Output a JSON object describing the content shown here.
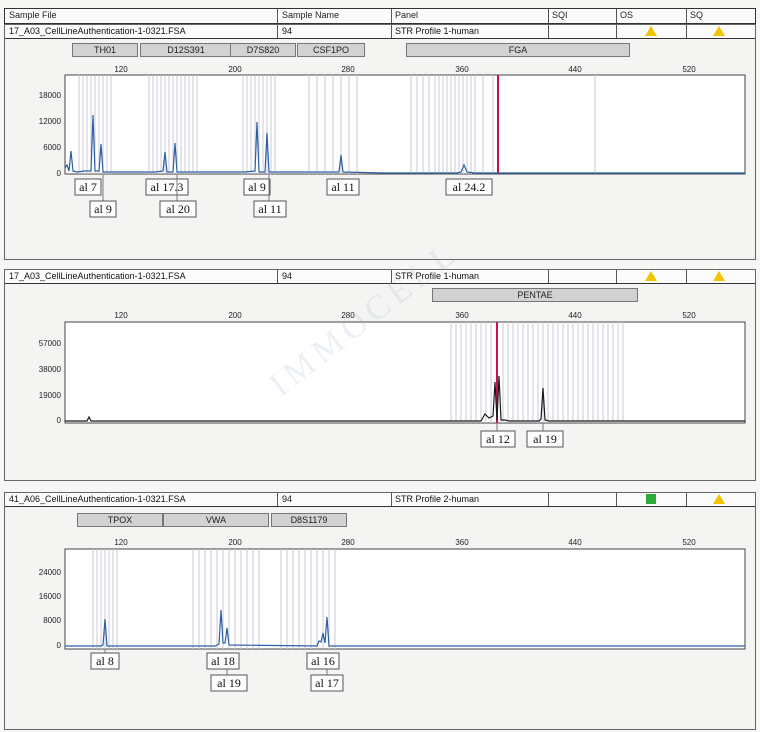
{
  "header": {
    "sample_file": "Sample File",
    "sample_name": "Sample Name",
    "panel": "Panel",
    "sqi": "SQI",
    "os": "OS",
    "sq": "SQ"
  },
  "x_axis_ticks": [
    "120",
    "200",
    "280",
    "360",
    "440",
    "520"
  ],
  "panels": [
    {
      "file": "17_A03_CellLineAuthentication-1-0321.FSA",
      "name": "94",
      "panel": "STR Profile 1-human",
      "markers": [
        "TH01",
        "D12S391",
        "D7S820",
        "CSF1PO",
        "FGA"
      ],
      "y_ticks": [
        "18000",
        "12000",
        "6000",
        "0"
      ],
      "alleles": [
        "al 7",
        "al 9",
        "al 17.3",
        "al 20",
        "al 9",
        "al 11",
        "al 11",
        "al 24.2"
      ]
    },
    {
      "file": "17_A03_CellLineAuthentication-1-0321.FSA",
      "name": "94",
      "panel": "STR Profile 1-human",
      "markers": [
        "PENTAE"
      ],
      "y_ticks": [
        "57000",
        "38000",
        "19000",
        "0"
      ],
      "alleles": [
        "al 12",
        "al 19"
      ]
    },
    {
      "file": "41_A06_CellLineAuthentication-1-0321.FSA",
      "name": "94",
      "panel": "STR Profile 2-human",
      "markers": [
        "TPOX",
        "VWA",
        "D8S1179"
      ],
      "y_ticks": [
        "24000",
        "16000",
        "8000",
        "0"
      ],
      "alleles": [
        "al 8",
        "al 18",
        "al 19",
        "al 16",
        "al 17"
      ]
    }
  ],
  "watermark": "IMMOCELL",
  "colors": {
    "trace": "#2b5fa6",
    "trace2": "#1a1a1a",
    "redline": "#c8124a",
    "warning": "#f1c400",
    "ok": "#2eaa3a"
  }
}
